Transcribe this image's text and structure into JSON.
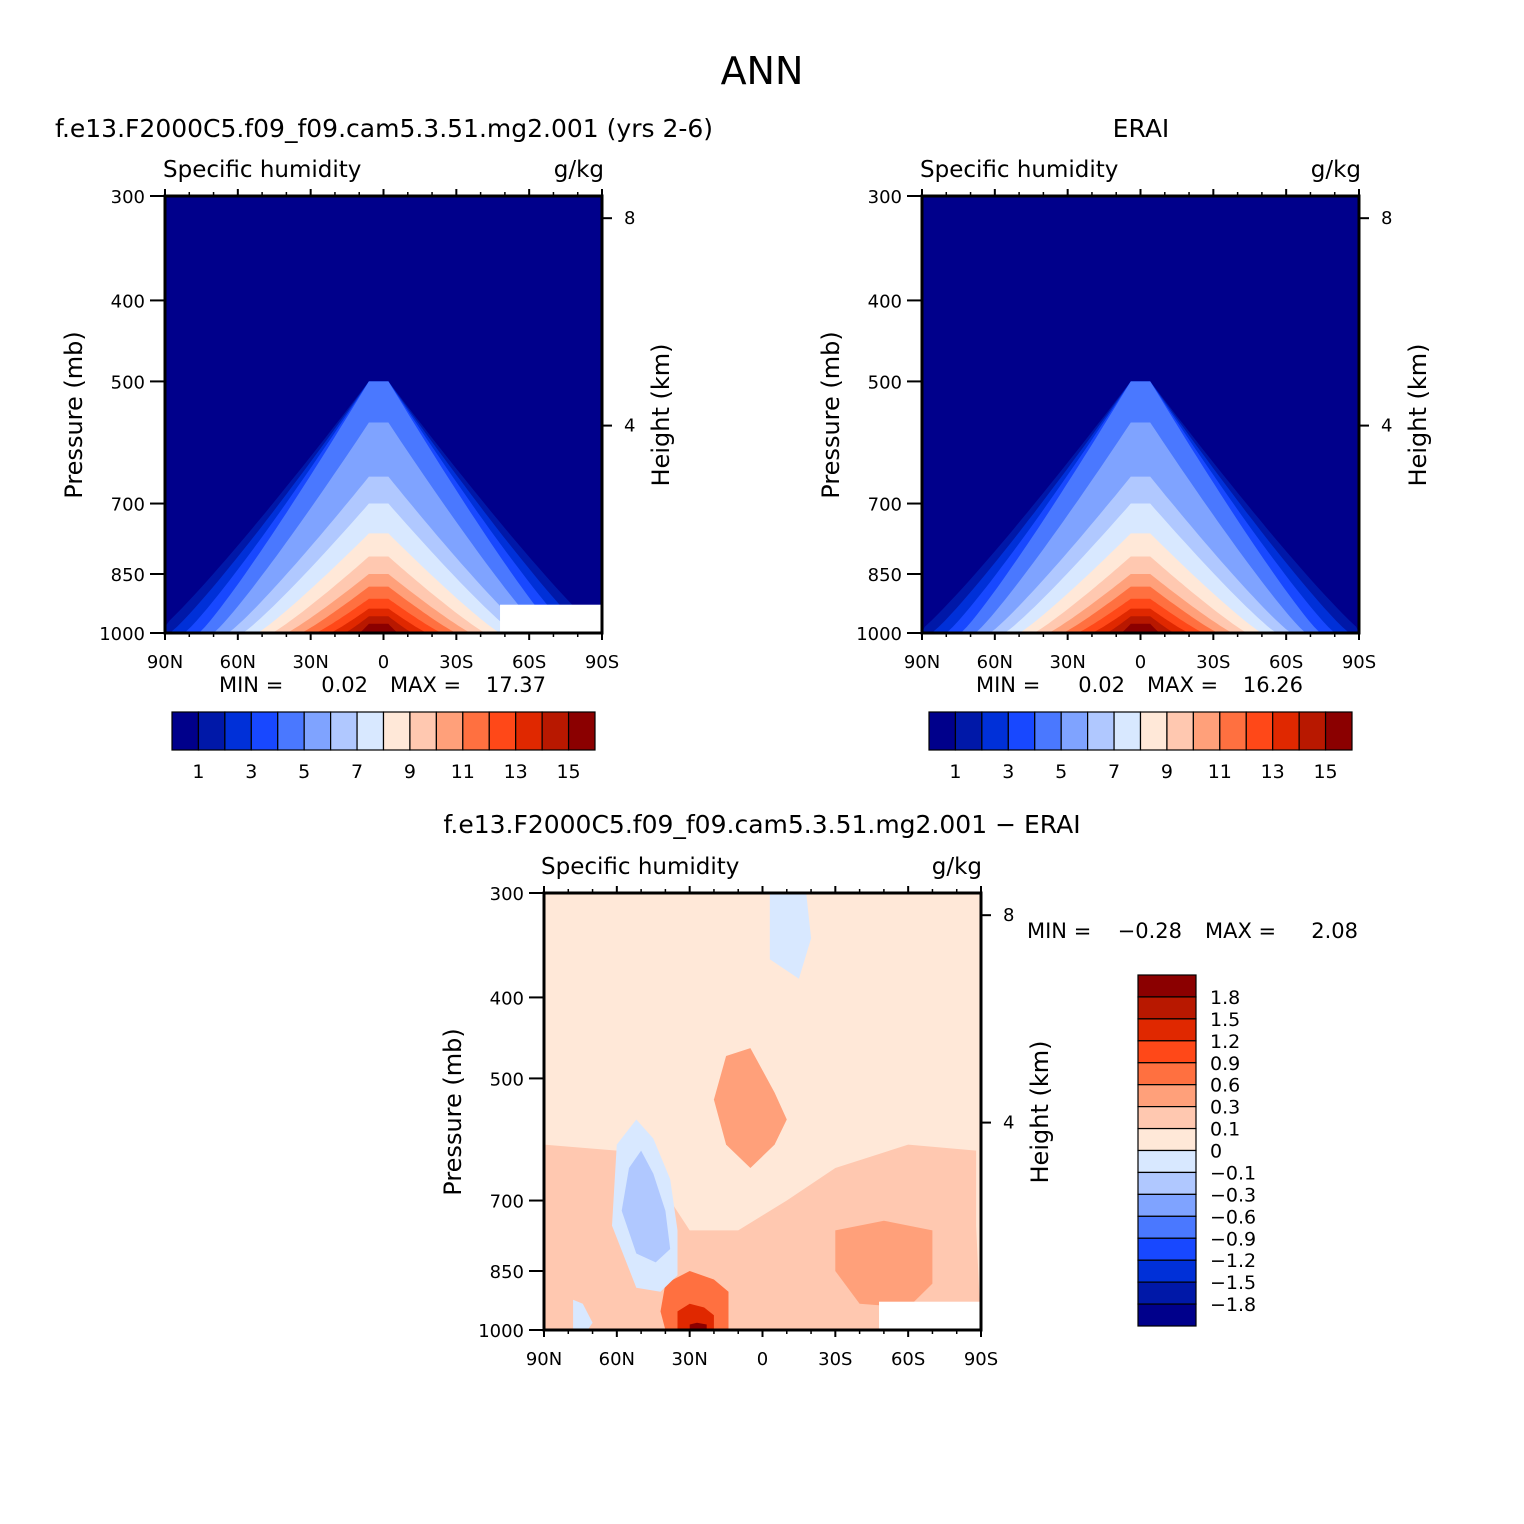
{
  "figure": {
    "title": "ANN",
    "colors": {
      "abs_palette": [
        "#00008b",
        "#0018a8",
        "#0030d8",
        "#1848ff",
        "#4a78ff",
        "#7fa3ff",
        "#b0c8ff",
        "#d8e8ff",
        "#ffe8d8",
        "#ffc8b0",
        "#ffa07a",
        "#ff7040",
        "#ff4818",
        "#e02800",
        "#b81800",
        "#8b0000"
      ],
      "diff_palette": [
        "#00008b",
        "#0018a8",
        "#0030d8",
        "#1848ff",
        "#4a78ff",
        "#7fa3ff",
        "#b0c8ff",
        "#d8e8ff",
        "#ffe8d8",
        "#ffc8b0",
        "#ffa07a",
        "#ff7040",
        "#ff4818",
        "#e02800",
        "#b81800",
        "#8b0000"
      ]
    }
  },
  "chart_data": [
    {
      "type": "heatmap",
      "panel": "model",
      "title": "f.e13.F2000C5.f09_f09.cam5.3.51.mg2.001 (yrs 2-6)",
      "left_string": "Specific humidity",
      "right_string": "g/kg",
      "ylabel": "Pressure (mb)",
      "ylabel_right": "Height (km)",
      "x_ticks": [
        "90N",
        "60N",
        "30N",
        "0",
        "30S",
        "60S",
        "90S"
      ],
      "y_ticks": [
        "300",
        "400",
        "500",
        "700",
        "850",
        "1000"
      ],
      "y_right_ticks": [
        "8",
        "4"
      ],
      "xlim": [
        90,
        -90
      ],
      "ylim": [
        1000,
        300
      ],
      "min_label": "MIN =",
      "min_value": "0.02",
      "max_label": "MAX =",
      "max_value": "17.37",
      "colorbar_ticks": [
        "1",
        "3",
        "5",
        "7",
        "9",
        "11",
        "13",
        "15"
      ],
      "levels": [
        1,
        2,
        3,
        4,
        5,
        6,
        7,
        8,
        9,
        10,
        11,
        12,
        13,
        14,
        15
      ],
      "peak_lat": 2,
      "peak_value": 17.37,
      "contour_top_hPa": [
        500,
        500,
        500,
        500,
        560,
        650,
        700,
        760,
        810,
        850,
        880,
        910,
        935,
        955,
        975
      ],
      "masked_region": {
        "lat_from": -48,
        "lat_to": -90,
        "p_from": 925,
        "p_to": 1000
      }
    },
    {
      "type": "heatmap",
      "panel": "obs",
      "title": "ERAI",
      "left_string": "Specific humidity",
      "right_string": "g/kg",
      "ylabel": "Pressure (mb)",
      "ylabel_right": "Height (km)",
      "x_ticks": [
        "90N",
        "60N",
        "30N",
        "0",
        "30S",
        "60S",
        "90S"
      ],
      "y_ticks": [
        "300",
        "400",
        "500",
        "700",
        "850",
        "1000"
      ],
      "y_right_ticks": [
        "8",
        "4"
      ],
      "xlim": [
        90,
        -90
      ],
      "ylim": [
        1000,
        300
      ],
      "min_label": "MIN =",
      "min_value": "0.02",
      "max_label": "MAX =",
      "max_value": "16.26",
      "colorbar_ticks": [
        "1",
        "3",
        "5",
        "7",
        "9",
        "11",
        "13",
        "15"
      ],
      "levels": [
        1,
        2,
        3,
        4,
        5,
        6,
        7,
        8,
        9,
        10,
        11,
        12,
        13,
        14,
        15
      ],
      "peak_lat": 0,
      "peak_value": 16.26,
      "contour_top_hPa": [
        500,
        500,
        500,
        500,
        560,
        650,
        700,
        760,
        810,
        850,
        880,
        910,
        935,
        955,
        975
      ],
      "masked_region": null
    },
    {
      "type": "heatmap",
      "panel": "difference",
      "title": "f.e13.F2000C5.f09_f09.cam5.3.51.mg2.001 − ERAI",
      "left_string": "Specific humidity",
      "right_string": "g/kg",
      "ylabel": "Pressure (mb)",
      "ylabel_right": "Height (km)",
      "x_ticks": [
        "90N",
        "60N",
        "30N",
        "0",
        "30S",
        "60S",
        "90S"
      ],
      "y_ticks": [
        "300",
        "400",
        "500",
        "700",
        "850",
        "1000"
      ],
      "y_right_ticks": [
        "8",
        "4"
      ],
      "xlim": [
        90,
        -90
      ],
      "ylim": [
        1000,
        300
      ],
      "min_label": "MIN =",
      "min_value": "−0.28",
      "max_label": "MAX =",
      "max_value": "2.08",
      "colorbar_ticks": [
        "1.8",
        "1.5",
        "1.2",
        "0.9",
        "0.6",
        "0.3",
        "0.1",
        "0",
        "−0.1",
        "−0.3",
        "−0.6",
        "−0.9",
        "−1.2",
        "−1.5",
        "−1.8"
      ],
      "levels": [
        -1.8,
        -1.5,
        -1.2,
        -0.9,
        -0.6,
        -0.3,
        -0.1,
        0,
        0.1,
        0.3,
        0.6,
        0.9,
        1.2,
        1.5,
        1.8
      ],
      "masked_region": {
        "lat_from": -48,
        "lat_to": -90,
        "p_from": 925,
        "p_to": 1000
      }
    }
  ]
}
